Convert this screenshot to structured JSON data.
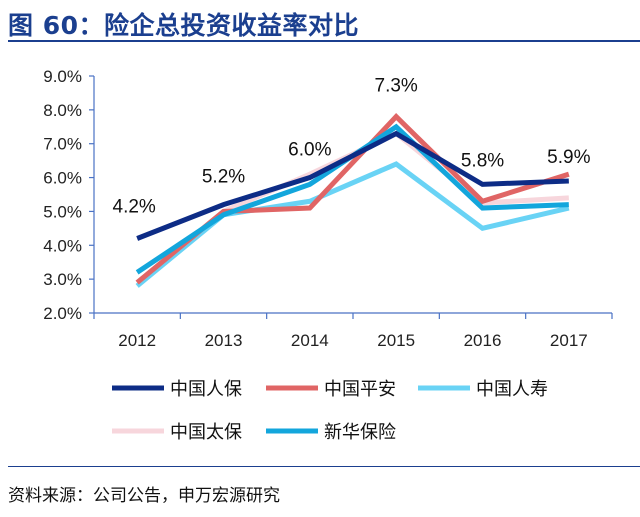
{
  "figure": {
    "title": "图 60：险企总投资收益率对比",
    "source": "资料来源：公司公告，申万宏源研究"
  },
  "chart_data": {
    "type": "line",
    "categories": [
      "2012",
      "2013",
      "2014",
      "2015",
      "2016",
      "2017"
    ],
    "ylim": [
      0.02,
      0.09
    ],
    "yticks": [
      "2.0%",
      "3.0%",
      "4.0%",
      "5.0%",
      "6.0%",
      "7.0%",
      "8.0%",
      "9.0%"
    ],
    "grid": false,
    "legend_position": "bottom",
    "series": [
      {
        "name": "中国人保",
        "color": "#0d2c86",
        "values": [
          4.2,
          5.2,
          6.0,
          7.3,
          5.8,
          5.9
        ],
        "labels": [
          "4.2%",
          "5.2%",
          "6.0%",
          "7.3%",
          "5.8%",
          "5.9%"
        ]
      },
      {
        "name": "中国平安",
        "color": "#e06565",
        "values": [
          2.9,
          5.0,
          5.1,
          7.8,
          5.3,
          6.1
        ]
      },
      {
        "name": "中国人寿",
        "color": "#69d3f5",
        "values": [
          2.8,
          4.9,
          5.3,
          6.4,
          4.5,
          5.1
        ]
      },
      {
        "name": "中国太保",
        "color": "#f7d6dc",
        "values": [
          2.9,
          5.0,
          6.1,
          7.3,
          5.25,
          5.4
        ]
      },
      {
        "name": "新华保险",
        "color": "#13a6dc",
        "values": [
          3.2,
          4.9,
          5.8,
          7.5,
          5.1,
          5.2
        ]
      }
    ]
  }
}
